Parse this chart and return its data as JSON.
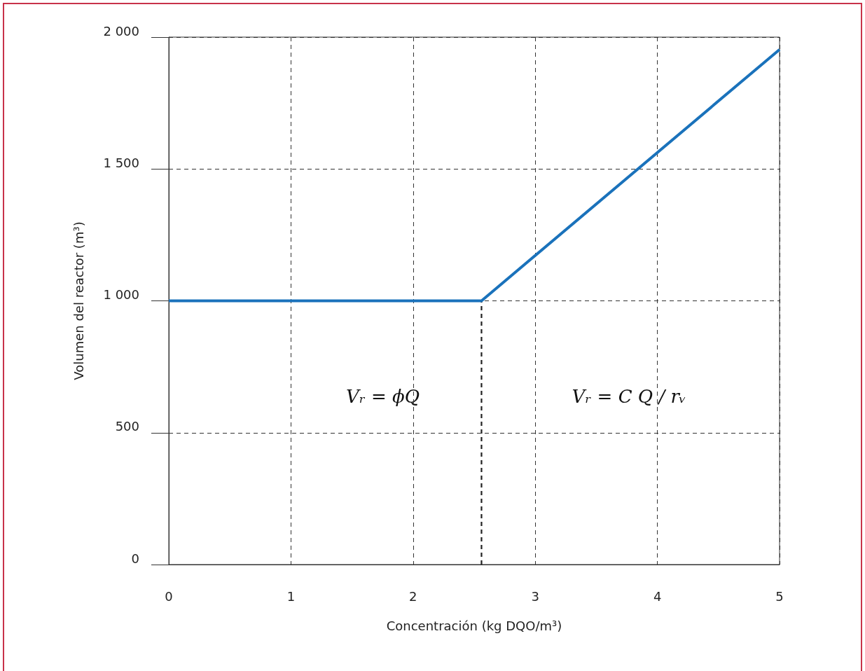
{
  "chart_data": {
    "type": "line",
    "xlabel": "Concentración (kg DQO/m³)",
    "ylabel": "Volumen del reactor (m³)",
    "series": [
      {
        "color": "#1a72bb",
        "x": [
          0,
          2.56,
          5
        ],
        "values": [
          1000,
          1000,
          1953
        ]
      },
      {
        "color": "#222222",
        "x": [
          2.56,
          2.56
        ],
        "values": [
          0,
          1000
        ],
        "line_style": "dashed"
      }
    ],
    "xlim": [
      0,
      5
    ],
    "xticks": [
      0,
      1,
      2,
      3,
      4,
      5
    ],
    "ylim": [
      0,
      2000
    ],
    "yticks": [
      0,
      500,
      {
        "value": 1000,
        "label": "1 000"
      },
      {
        "value": 1500,
        "label": "1 500"
      },
      {
        "value": 2000,
        "label": "2 000"
      }
    ],
    "grid": true,
    "marker": "none",
    "line_style": "solid",
    "annotations": [
      "Vᵣ = ϕQ",
      "Vᵣ = C Q / rᵥ"
    ]
  }
}
